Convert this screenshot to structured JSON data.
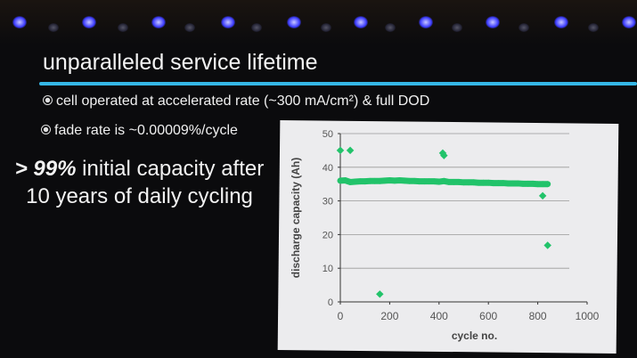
{
  "slide": {
    "title": "unparalleled service lifetime",
    "bullets": [
      "cell operated at accelerated rate (~300 mA/cm²) & full DOD",
      "fade rate is ~0.00009%/cycle"
    ],
    "highlight_prefix": "> 99%",
    "highlight_text": " initial capacity after 10 years of daily cycling",
    "accent_color": "#35b7e6"
  },
  "chart_data": {
    "type": "scatter",
    "xlabel": "cycle no.",
    "ylabel": "discharge capacity (Ah)",
    "xlim": [
      0,
      1000
    ],
    "ylim": [
      0,
      50
    ],
    "xticks": [
      "0",
      "200",
      "400",
      "600",
      "800",
      "1000"
    ],
    "yticks": [
      "0",
      "10",
      "20",
      "30",
      "40",
      "50"
    ],
    "grid": "horizontal",
    "color": "#22c36a",
    "main_series": {
      "x": [
        0,
        20,
        40,
        60,
        80,
        100,
        120,
        140,
        160,
        180,
        200,
        220,
        240,
        260,
        280,
        300,
        320,
        340,
        360,
        380,
        400,
        420,
        440,
        460,
        480,
        500,
        520,
        540,
        560,
        580,
        600,
        620,
        640,
        660,
        680,
        700,
        720,
        740,
        760,
        780,
        800,
        820,
        840
      ],
      "y": [
        36.0,
        36.1,
        35.6,
        35.7,
        35.8,
        35.8,
        35.9,
        35.9,
        35.9,
        36.0,
        36.1,
        36.0,
        36.1,
        36.0,
        35.9,
        35.9,
        35.8,
        35.8,
        35.8,
        35.8,
        35.7,
        35.9,
        35.6,
        35.6,
        35.6,
        35.5,
        35.5,
        35.5,
        35.4,
        35.4,
        35.4,
        35.3,
        35.3,
        35.3,
        35.2,
        35.2,
        35.2,
        35.1,
        35.1,
        35.1,
        35.0,
        35.0,
        35.0
      ]
    },
    "outliers": [
      {
        "x": 0,
        "y": 45
      },
      {
        "x": 40,
        "y": 45
      },
      {
        "x": 160,
        "y": 2.3
      },
      {
        "x": 415,
        "y": 44.2
      },
      {
        "x": 420,
        "y": 43.5
      },
      {
        "x": 820,
        "y": 31.5
      },
      {
        "x": 840,
        "y": 16.8
      }
    ]
  }
}
